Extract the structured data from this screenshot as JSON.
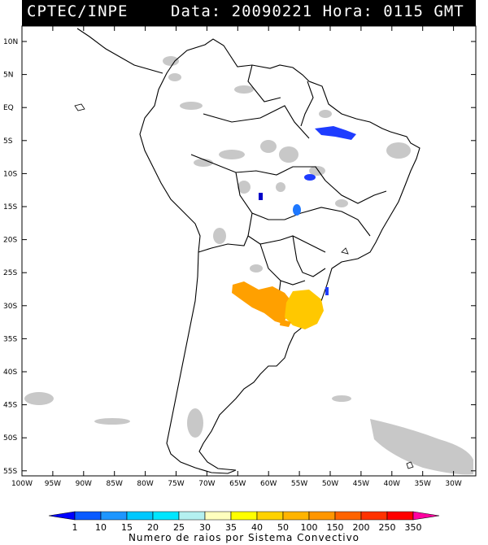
{
  "header": {
    "agency": "CPTEC/INPE",
    "datetime": "Data: 20090221 Hora: 0115 GMT"
  },
  "map": {
    "lat_ticks": [
      "10N",
      "5N",
      "EQ",
      "5S",
      "10S",
      "15S",
      "20S",
      "25S",
      "30S",
      "35S",
      "40S",
      "45S",
      "50S",
      "55S"
    ],
    "lon_ticks": [
      "100W",
      "95W",
      "90W",
      "85W",
      "80W",
      "75W",
      "70W",
      "65W",
      "60W",
      "55W",
      "50W",
      "45W",
      "40W",
      "35W",
      "30W"
    ],
    "colors": {
      "land_outline": "#000000",
      "cloud": "#c8c8c8",
      "ocean": "#ffffff",
      "grid": "#000000"
    },
    "convective_systems": [
      {
        "region": "Northeast Brazil",
        "class": "1-10",
        "color": "#1e3cff"
      },
      {
        "region": "Central Brazil",
        "class": "1-10",
        "color": "#1e3cff"
      },
      {
        "region": "Bolivia border",
        "class": "1",
        "color": "#0000c8"
      },
      {
        "region": "Northern Argentina",
        "class": "100-150",
        "color": "#ffa000"
      },
      {
        "region": "Uruguay / Rio Grande do Sul",
        "class": "50-100",
        "color": "#ffc800"
      }
    ]
  },
  "colorbar": {
    "labels": [
      "1",
      "10",
      "15",
      "20",
      "25",
      "30",
      "35",
      "40",
      "50",
      "100",
      "150",
      "200",
      "250",
      "350"
    ],
    "colors": [
      "#0000ff",
      "#0a5aff",
      "#1e96ff",
      "#00c8ff",
      "#00e6ff",
      "#b4f0f0",
      "#ffffbe",
      "#ffff00",
      "#ffd200",
      "#ffb400",
      "#ff9600",
      "#ff6400",
      "#ff3200",
      "#ff0000",
      "#ff00a0"
    ],
    "title": "Numero de raios por Sistema Convectivo"
  }
}
